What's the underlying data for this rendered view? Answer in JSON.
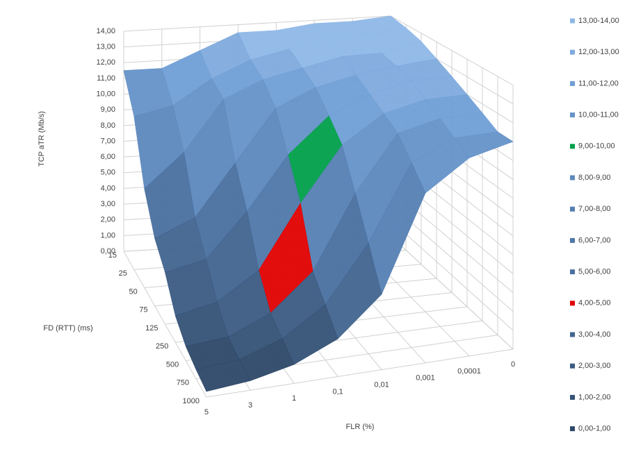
{
  "chart_data": {
    "type": "surface",
    "z_label": "TCP aTR (Mb/s)",
    "y_label": "FD (RTT) (ms)",
    "x_label": "FLR (%)",
    "x": [
      "5",
      "3",
      "1",
      "0,1",
      "0,01",
      "0,001",
      "0,0001",
      "0"
    ],
    "y": [
      "15",
      "25",
      "50",
      "75",
      "125",
      "250",
      "500",
      "750",
      "1000"
    ],
    "values": [
      [
        11.5,
        11.5,
        12.5,
        13.5,
        13.5,
        13.8,
        13.8,
        14
      ],
      [
        9.5,
        10,
        11.5,
        12.5,
        13,
        13.5,
        13.5,
        13.8
      ],
      [
        6,
        8,
        11,
        12,
        12.5,
        13,
        13,
        13.5
      ],
      [
        4,
        5,
        8,
        11,
        12,
        12.5,
        12.8,
        13
      ],
      [
        3,
        3.5,
        6,
        9,
        11,
        12,
        12.5,
        12.5
      ],
      [
        1.5,
        2,
        3.5,
        7,
        10,
        11.5,
        12,
        12
      ],
      [
        0.8,
        1,
        2,
        4,
        8,
        11,
        11.5,
        11.5
      ],
      [
        0.5,
        0.7,
        1.5,
        3,
        6,
        10,
        11,
        11
      ],
      [
        0.3,
        0.5,
        1,
        2,
        4,
        9,
        10.5,
        11
      ]
    ],
    "zlim": [
      0,
      14
    ],
    "zticks": [
      {
        "value": 0,
        "label": "0,00"
      },
      {
        "value": 1,
        "label": "1,00"
      },
      {
        "value": 2,
        "label": "2,00"
      },
      {
        "value": 3,
        "label": "3,00"
      },
      {
        "value": 4,
        "label": "4,00"
      },
      {
        "value": 5,
        "label": "5,00"
      },
      {
        "value": 6,
        "label": "6,00"
      },
      {
        "value": 7,
        "label": "7,00"
      },
      {
        "value": 8,
        "label": "8,00"
      },
      {
        "value": 9,
        "label": "9,00"
      },
      {
        "value": 10,
        "label": "10,00"
      },
      {
        "value": 11,
        "label": "11,00"
      },
      {
        "value": 12,
        "label": "12,00"
      },
      {
        "value": 13,
        "label": "13,00"
      },
      {
        "value": 14,
        "label": "14,00"
      }
    ],
    "legend": [
      {
        "name": "13,00-14,00",
        "color": "#8fb8e8"
      },
      {
        "name": "12,00-13,00",
        "color": "#7faadd"
      },
      {
        "name": "11,00-12,00",
        "color": "#6f9fd6"
      },
      {
        "name": "10,00-11,00",
        "color": "#6592c8"
      },
      {
        "name": "9,00-10,00",
        "color": "#00a04a"
      },
      {
        "name": "8,00-9,00",
        "color": "#5c88bd"
      },
      {
        "name": "7,00-8,00",
        "color": "#557fb3"
      },
      {
        "name": "6,00-7,00",
        "color": "#4f77a9"
      },
      {
        "name": "5,00-6,00",
        "color": "#4a70a0"
      },
      {
        "name": "4,00-5,00",
        "color": "#e00000"
      },
      {
        "name": "3,00-4,00",
        "color": "#41648f"
      },
      {
        "name": "2,00-3,00",
        "color": "#3b5b83"
      },
      {
        "name": "1,00-2,00",
        "color": "#345276"
      },
      {
        "name": "0,00-1,00",
        "color": "#2e4868"
      }
    ],
    "grid": true
  }
}
